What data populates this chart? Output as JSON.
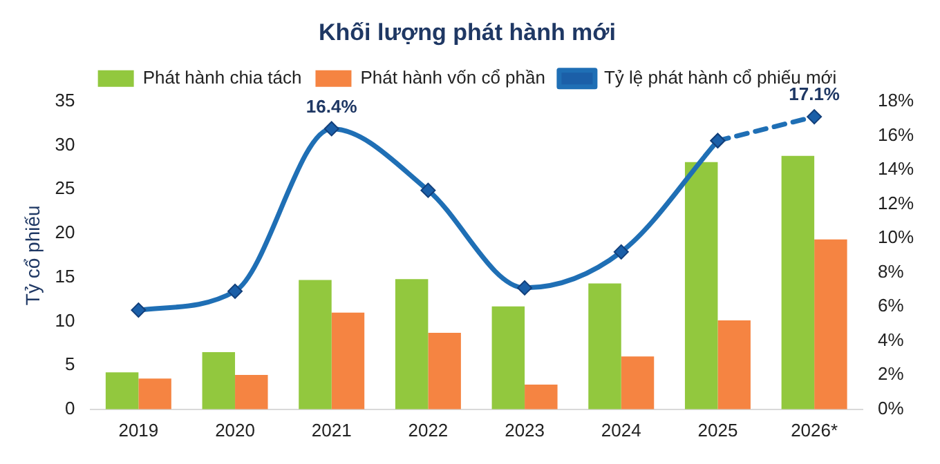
{
  "chart_data": {
    "type": "bar",
    "title": "Khối lượng phát hành mới",
    "ylabel": "Tỷ cổ phiếu",
    "categories": [
      "2019",
      "2020",
      "2021",
      "2022",
      "2023",
      "2024",
      "2025",
      "2026*"
    ],
    "series": [
      {
        "name": "Phát hành chia tách",
        "color": "#92c83e",
        "values": [
          4.2,
          6.5,
          14.7,
          14.8,
          11.7,
          14.3,
          28.1,
          28.8
        ]
      },
      {
        "name": "Phát hành vốn cổ phần",
        "color": "#f58442",
        "values": [
          3.5,
          3.9,
          11.0,
          8.7,
          2.8,
          6.0,
          10.1,
          19.3
        ]
      },
      {
        "name": "Tỷ lệ phát hành cổ phiếu mới",
        "type": "line",
        "axis": "y2",
        "color": "#1f6fb5",
        "marker": "diamond",
        "line_style": "solid",
        "values": [
          5.8,
          6.9,
          16.4,
          12.8,
          7.1,
          9.2,
          15.7,
          null
        ],
        "value_labels": [
          null,
          null,
          "16.4%",
          null,
          null,
          null,
          null,
          null
        ]
      },
      {
        "type": "line",
        "axis": "y2",
        "color": "#1f6fb5",
        "marker": "diamond",
        "line_style": "dashed",
        "values": [
          null,
          null,
          null,
          null,
          null,
          null,
          15.7,
          17.1
        ],
        "value_labels": [
          null,
          null,
          null,
          null,
          null,
          null,
          null,
          "17.1%"
        ]
      }
    ],
    "ylim": [
      0,
      35
    ],
    "yticks": [
      0,
      5,
      10,
      15,
      20,
      25,
      30,
      35
    ],
    "y2lim": [
      0,
      18
    ],
    "y2ticks": [
      {
        "value": 0,
        "label": "0%"
      },
      {
        "value": 2,
        "label": "2%"
      },
      {
        "value": 4,
        "label": "4%"
      },
      {
        "value": 6,
        "label": "6%"
      },
      {
        "value": 8,
        "label": "8%"
      },
      {
        "value": 10,
        "label": "10%"
      },
      {
        "value": 12,
        "label": "12%"
      },
      {
        "value": 14,
        "label": "14%"
      },
      {
        "value": 16,
        "label": "16%"
      },
      {
        "value": 18,
        "label": "18%"
      }
    ],
    "grid": false,
    "legend": "top"
  }
}
